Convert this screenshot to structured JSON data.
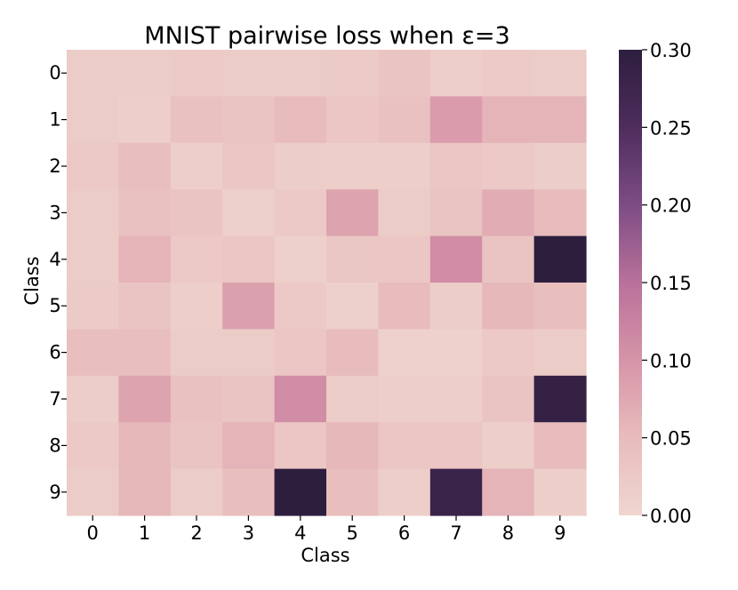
{
  "chart_data": {
    "type": "heatmap",
    "title": "MNIST pairwise loss when ε=3",
    "xlabel": "Class",
    "ylabel": "Class",
    "x_categories": [
      "0",
      "1",
      "2",
      "3",
      "4",
      "5",
      "6",
      "7",
      "8",
      "9"
    ],
    "y_categories": [
      "0",
      "1",
      "2",
      "3",
      "4",
      "5",
      "6",
      "7",
      "8",
      "9"
    ],
    "values": [
      [
        0.02,
        0.02,
        0.022,
        0.02,
        0.02,
        0.022,
        0.035,
        0.015,
        0.022,
        0.02
      ],
      [
        0.02,
        0.015,
        0.04,
        0.035,
        0.05,
        0.03,
        0.04,
        0.09,
        0.06,
        0.06
      ],
      [
        0.025,
        0.045,
        0.015,
        0.03,
        0.018,
        0.015,
        0.015,
        0.03,
        0.025,
        0.018
      ],
      [
        0.02,
        0.04,
        0.035,
        0.012,
        0.025,
        0.08,
        0.02,
        0.035,
        0.07,
        0.05
      ],
      [
        0.02,
        0.06,
        0.025,
        0.03,
        0.012,
        0.028,
        0.03,
        0.11,
        0.035,
        0.3
      ],
      [
        0.022,
        0.035,
        0.015,
        0.085,
        0.025,
        0.012,
        0.05,
        0.018,
        0.055,
        0.045
      ],
      [
        0.045,
        0.045,
        0.02,
        0.02,
        0.03,
        0.05,
        0.01,
        0.01,
        0.025,
        0.02
      ],
      [
        0.018,
        0.08,
        0.04,
        0.035,
        0.11,
        0.02,
        0.015,
        0.015,
        0.035,
        0.29
      ],
      [
        0.025,
        0.055,
        0.035,
        0.06,
        0.03,
        0.055,
        0.03,
        0.03,
        0.015,
        0.05
      ],
      [
        0.02,
        0.055,
        0.02,
        0.045,
        0.3,
        0.045,
        0.015,
        0.28,
        0.06,
        0.015
      ]
    ],
    "colorbar": {
      "range": [
        0.0,
        0.3
      ],
      "ticks": [
        0.0,
        0.05,
        0.1,
        0.15,
        0.2,
        0.25,
        0.3
      ],
      "tick_labels": [
        "0.00",
        "0.05",
        "0.10",
        "0.15",
        "0.20",
        "0.25",
        "0.30"
      ]
    },
    "colormap": [
      "#efd6cf",
      "#e8bcbc",
      "#d694a8",
      "#b9719a",
      "#7d4c85",
      "#4e2d5c",
      "#2d1e3e"
    ]
  }
}
